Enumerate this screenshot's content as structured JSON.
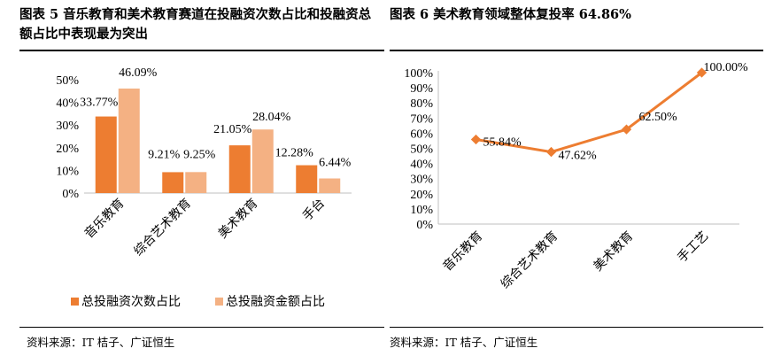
{
  "left": {
    "title": "图表 5 音乐教育和美术教育赛道在投融资次数占比和投融资总额占比中表现最为突出",
    "source": "资料来源：IT 桔子、广证恒生"
  },
  "right": {
    "title": "图表 6 美术教育领域整体复投率 64.86%",
    "source": "资料来源：IT 桔子、广证恒生"
  },
  "chart_data": [
    {
      "type": "bar",
      "title": "图表 5 音乐教育和美术教育赛道在投融资次数占比和投融资总额占比中表现最为突出",
      "categories": [
        "音乐教育",
        "综合艺术教育",
        "美术教育",
        "手台"
      ],
      "series": [
        {
          "name": "总投融资次数占比",
          "values": [
            33.77,
            9.21,
            21.05,
            12.28
          ],
          "labels": [
            "33.77%",
            "9.21%",
            "21.05%",
            "12.28%"
          ],
          "color": "#ED7D31"
        },
        {
          "name": "总投融资金额占比",
          "values": [
            46.09,
            9.25,
            28.04,
            6.44
          ],
          "labels": [
            "46.09%",
            "9.25%",
            "28.04%",
            "6.44%"
          ],
          "color": "#F4B183"
        }
      ],
      "yticks": [
        "0%",
        "10%",
        "20%",
        "30%",
        "40%",
        "50%"
      ],
      "ylim": [
        0,
        50
      ],
      "legend": "bottom",
      "grid": false
    },
    {
      "type": "line",
      "title": "图表 6 美术教育领域整体复投率 64.86%",
      "categories": [
        "音乐教育",
        "综合艺术教育",
        "美术教育",
        "手工艺"
      ],
      "series": [
        {
          "values": [
            55.84,
            47.62,
            62.5,
            100.0
          ],
          "labels": [
            "55.84%",
            "47.62%",
            "62.50%",
            "100.00%"
          ],
          "color": "#ED7D31"
        }
      ],
      "yticks": [
        "0%",
        "10%",
        "20%",
        "30%",
        "40%",
        "50%",
        "60%",
        "70%",
        "80%",
        "90%",
        "100%"
      ],
      "ylim": [
        0,
        100
      ],
      "grid": false
    }
  ]
}
